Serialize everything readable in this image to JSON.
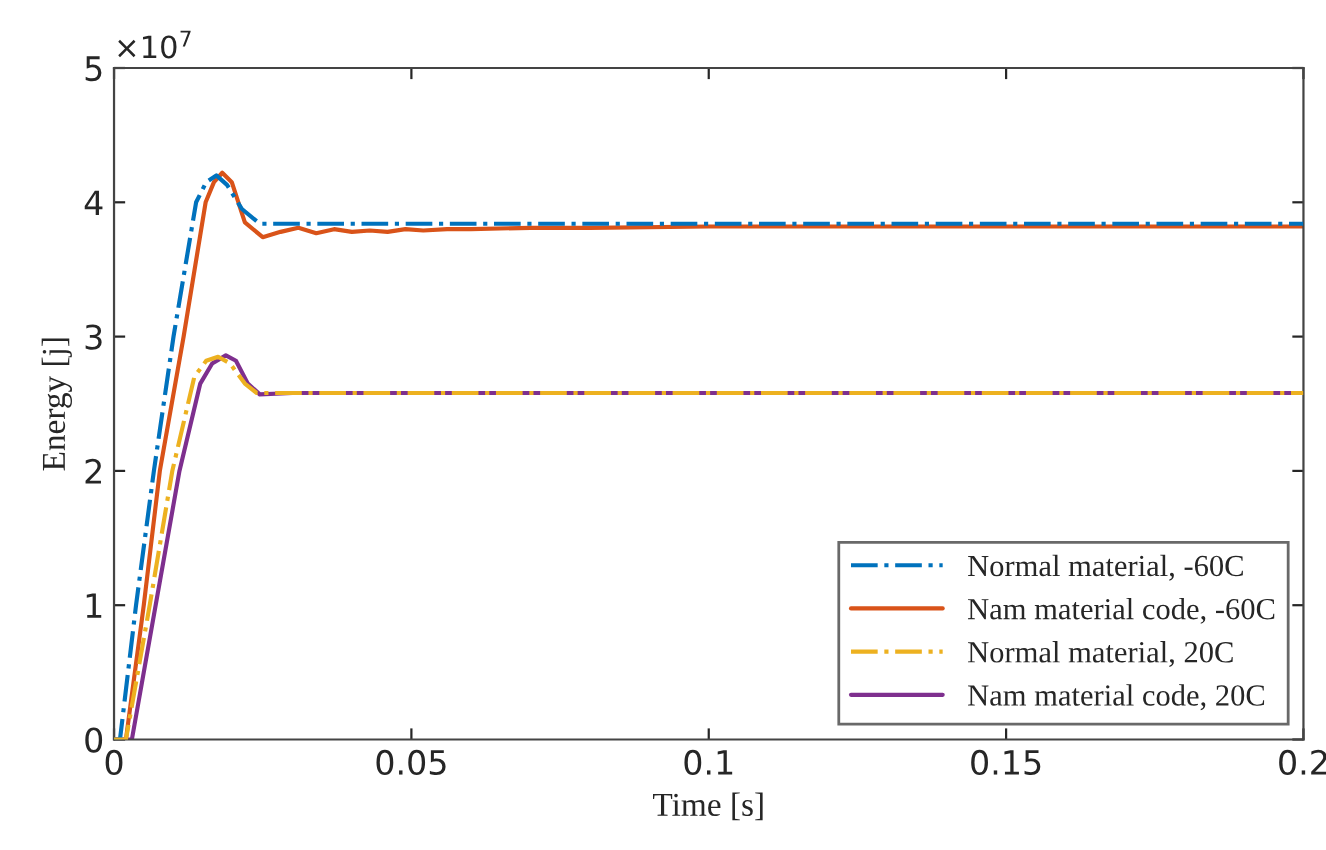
{
  "chart_data": {
    "type": "line",
    "xlabel": "Time [s]",
    "ylabel": "Energy [j]",
    "annotations": [
      "×10$^{7}$"
    ],
    "xlim": [
      0,
      0.2
    ],
    "xticks": [
      0,
      0.05,
      0.1,
      0.15,
      0.2
    ],
    "ylim": [
      0,
      5
    ],
    "yticks": [
      0,
      1,
      2,
      3,
      4,
      5
    ],
    "grid": false,
    "legend": "bottom right",
    "marker": "none",
    "series": [
      {
        "name": "Normal material, -60C",
        "color": "#0072bd",
        "line_style": "dashdot",
        "x": [
          0,
          0.001,
          0.0037,
          0.0067,
          0.01,
          0.0138,
          0.0155,
          0.0172,
          0.019,
          0.0215,
          0.0245,
          0.05,
          0.1,
          0.15,
          0.2
        ],
        "values": [
          0,
          0,
          1.0,
          2.0,
          3.0,
          4.0,
          4.15,
          4.2,
          4.13,
          3.95,
          3.84,
          3.84,
          3.84,
          3.84,
          3.84
        ]
      },
      {
        "name": "Nam material code, -60C",
        "color": "#d95319",
        "line_style": "solid",
        "x": [
          0,
          0.002,
          0.005,
          0.0077,
          0.0117,
          0.0154,
          0.0168,
          0.0182,
          0.0198,
          0.022,
          0.025,
          0.028,
          0.031,
          0.034,
          0.037,
          0.04,
          0.043,
          0.046,
          0.049,
          0.052,
          0.056,
          0.06,
          0.07,
          0.08,
          0.1,
          0.12,
          0.15,
          0.2
        ],
        "values": [
          0,
          0,
          1.0,
          2.0,
          3.0,
          4.0,
          4.15,
          4.22,
          4.15,
          3.85,
          3.74,
          3.78,
          3.81,
          3.77,
          3.8,
          3.78,
          3.79,
          3.78,
          3.8,
          3.79,
          3.8,
          3.8,
          3.81,
          3.81,
          3.82,
          3.82,
          3.82,
          3.82
        ]
      },
      {
        "name": "Normal material, 20C",
        "color": "#edb120",
        "line_style": "dashdot",
        "x": [
          0,
          0.002,
          0.006,
          0.0098,
          0.0135,
          0.0155,
          0.0175,
          0.0195,
          0.022,
          0.024,
          0.05,
          0.1,
          0.15,
          0.2
        ],
        "values": [
          0,
          0,
          1.0,
          2.0,
          2.7,
          2.82,
          2.85,
          2.8,
          2.65,
          2.58,
          2.58,
          2.58,
          2.58,
          2.58
        ]
      },
      {
        "name": "Nam material code, 20C",
        "color": "#7e2f8e",
        "line_style": "solid",
        "x": [
          0,
          0.003,
          0.007,
          0.011,
          0.0145,
          0.0165,
          0.0188,
          0.0205,
          0.0225,
          0.0245,
          0.03,
          0.05,
          0.1,
          0.15,
          0.2
        ],
        "values": [
          0,
          0,
          1.0,
          2.0,
          2.65,
          2.8,
          2.86,
          2.82,
          2.65,
          2.57,
          2.58,
          2.58,
          2.58,
          2.58,
          2.58
        ]
      }
    ]
  }
}
